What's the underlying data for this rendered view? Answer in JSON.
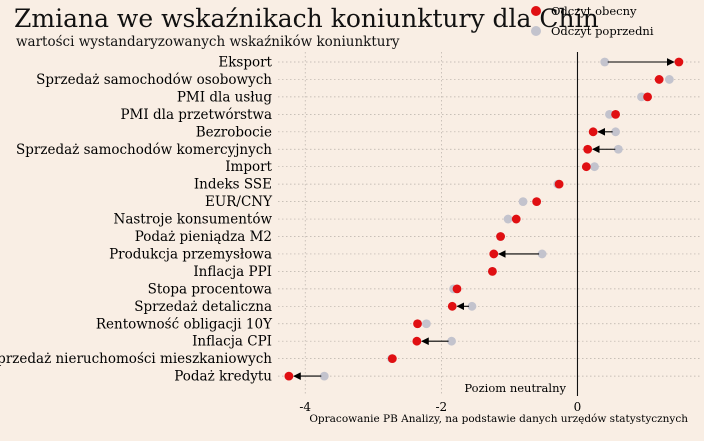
{
  "title": "Zmiana we wskaźnikach koniunktury dla Chin",
  "subtitle": "wartości wystandaryzowanych wskaźników koniunktury",
  "legend": {
    "current": "Odczyt obecny",
    "previous": "Odczyt poprzedni"
  },
  "colors": {
    "background": "#f9eee4",
    "current": "#e00f12",
    "previous": "#c3c3cd",
    "arrow": "#000000",
    "grid": "#b8b0a8"
  },
  "neutral_label": "Poziom neutralny",
  "source": "Opracowanie PB Analizy, na podstawie danych urzędów statystycznych",
  "chart_data": {
    "type": "scatter",
    "xlim": [
      -4.4,
      1.8
    ],
    "xticks": [
      -4,
      -2,
      0
    ],
    "xtick_labels": [
      "-4",
      "-2",
      "0"
    ],
    "grid": true,
    "legend_position": "top-right",
    "categories": [
      "Eksport",
      "Sprzedaż samochodów osobowych",
      "PMI dla usług",
      "PMI dla przetwórstwa",
      "Bezrobocie",
      "Sprzedaż samochodów komercyjnych",
      "Import",
      "Indeks SSE",
      "EUR/CNY",
      "Nastroje konsumentów",
      "Podaż pieniądza M2",
      "Produkcja przemysłowa",
      "Inflacja PPI",
      "Stopa procentowa",
      "Sprzedaż detaliczna",
      "Rentowność obligacji 10Y",
      "Inflacja CPI",
      "Sprzedaż nieruchomości mieszkaniowych",
      "Podaż kredytu"
    ],
    "series": [
      {
        "name": "Odczyt obecny",
        "values": [
          1.49,
          1.2,
          1.03,
          0.56,
          0.23,
          0.15,
          0.13,
          -0.27,
          -0.6,
          -0.9,
          -1.13,
          -1.23,
          -1.25,
          -1.77,
          -1.84,
          -2.35,
          -2.36,
          -2.72,
          -4.24
        ]
      },
      {
        "name": "Odczyt poprzedni",
        "values": [
          0.4,
          1.35,
          0.94,
          0.47,
          0.56,
          0.6,
          0.25,
          -0.29,
          -0.8,
          -1.02,
          -1.13,
          -0.52,
          -1.25,
          -1.82,
          -1.55,
          -2.22,
          -1.85,
          -2.73,
          -3.72
        ]
      }
    ]
  }
}
